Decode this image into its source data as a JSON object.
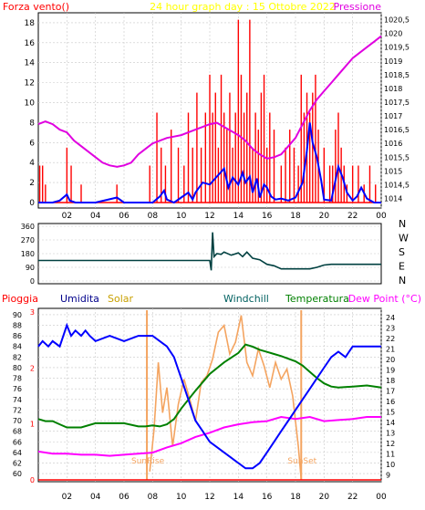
{
  "colors": {
    "panel_border": "#000000",
    "grid": "#c8c8c8",
    "wind_speed": "#ff0000",
    "wind_gust_avg": "#0000ff",
    "pressure": "#e000e0",
    "direction": "#004040",
    "humidity": "#0000ff",
    "solar": "#f4a460",
    "windchill": "#006400",
    "temperature": "#008000",
    "dew_point": "#ff00ff",
    "rain": "#ff0000",
    "sun_marker": "#f4a460"
  },
  "chart_data": [
    {
      "type": "bar",
      "title": "24 hour graph day : 15 Ottobre 2022",
      "left_label": "Forza vento()",
      "right_label": "Pressione",
      "x_ticks": [
        "02",
        "04",
        "06",
        "08",
        "10",
        "12",
        "14",
        "16",
        "18",
        "20",
        "22",
        "00"
      ],
      "y_left_ticks": [
        "0",
        "2",
        "4",
        "6",
        "8",
        "10",
        "12",
        "14",
        "16",
        "18"
      ],
      "y_left_lim": [
        0,
        19
      ],
      "y_right_ticks": [
        "1014",
        "1014,5",
        "1015",
        "1015,5",
        "1016",
        "1016,5",
        "1017",
        "1017,5",
        "1018",
        "1018,5",
        "1019",
        "1019,5",
        "1020",
        "1020,5"
      ],
      "y_right_lim": [
        1013.85,
        1020.75
      ],
      "wind_gust_hours": [
        0.1,
        0.3,
        0.5,
        2.0,
        2.3,
        3.0,
        5.5,
        7.8,
        8.3,
        8.6,
        8.9,
        9.3,
        9.8,
        10.2,
        10.5,
        10.8,
        11.1,
        11.4,
        11.7,
        12.0,
        12.2,
        12.4,
        12.6,
        12.8,
        13.0,
        13.2,
        13.4,
        13.6,
        13.8,
        14.0,
        14.2,
        14.4,
        14.6,
        14.8,
        15.0,
        15.2,
        15.4,
        15.6,
        15.8,
        16.0,
        16.2,
        16.5,
        17.0,
        17.3,
        17.6,
        17.9,
        18.2,
        18.4,
        18.6,
        18.8,
        19.0,
        19.2,
        19.4,
        19.6,
        20.0,
        20.4,
        20.6,
        20.8,
        21.0,
        21.2,
        21.4,
        21.6,
        22.0,
        22.4,
        22.8,
        23.2,
        23.6
      ],
      "wind_gust_values": [
        3.7,
        3.7,
        1.8,
        5.5,
        3.7,
        1.8,
        1.8,
        3.7,
        9.0,
        5.5,
        3.7,
        7.3,
        5.5,
        3.7,
        9.0,
        5.5,
        11.0,
        5.5,
        9.0,
        12.8,
        9.0,
        11.0,
        5.5,
        12.8,
        9.0,
        7.3,
        11.0,
        5.5,
        9.0,
        18.3,
        12.8,
        9.0,
        11.0,
        18.3,
        5.5,
        9.0,
        7.3,
        11.0,
        12.8,
        5.5,
        9.0,
        7.3,
        3.7,
        5.5,
        7.3,
        5.5,
        3.7,
        12.8,
        9.0,
        11.0,
        9.0,
        11.0,
        12.8,
        7.3,
        5.5,
        3.7,
        3.7,
        7.3,
        9.0,
        5.5,
        3.7,
        1.8,
        3.7,
        3.7,
        1.8,
        3.7,
        1.8
      ],
      "wind_avg_hours": [
        0,
        1.0,
        1.5,
        2.0,
        2.2,
        2.6,
        3.0,
        4.0,
        5.5,
        6.0,
        7.0,
        8.0,
        8.5,
        8.8,
        9.0,
        9.5,
        10.0,
        10.5,
        10.8,
        11.0,
        11.5,
        12.0,
        12.5,
        13.0,
        13.3,
        13.6,
        14.0,
        14.3,
        14.5,
        14.8,
        15.0,
        15.3,
        15.5,
        15.8,
        16.0,
        16.3,
        16.6,
        17.0,
        17.5,
        18.0,
        18.5,
        18.8,
        19.0,
        19.2,
        19.5,
        19.8,
        20.0,
        20.5,
        21.0,
        21.3,
        21.6,
        22.0,
        22.3,
        22.6,
        23.0,
        23.5,
        24.0
      ],
      "wind_avg_values": [
        0,
        0,
        0.2,
        0.8,
        0.2,
        0,
        0,
        0,
        0.5,
        0,
        0,
        0,
        0.6,
        1.2,
        0.3,
        0,
        0.5,
        1.0,
        0.3,
        1.0,
        2.0,
        1.8,
        2.6,
        3.4,
        1.5,
        2.5,
        1.8,
        3.0,
        2.0,
        2.6,
        1.0,
        2.4,
        0.5,
        1.8,
        1.5,
        0.6,
        0.3,
        0.4,
        0.2,
        0.5,
        2.0,
        5.2,
        8.0,
        6.0,
        4.5,
        2.2,
        0.3,
        0.2,
        3.6,
        2.5,
        1.0,
        0.2,
        0.6,
        1.5,
        0.4,
        0,
        0
      ],
      "pressure_hours": [
        0,
        0.5,
        1.0,
        1.5,
        2.0,
        2.5,
        3.0,
        3.5,
        4.0,
        4.5,
        5.0,
        5.5,
        6.0,
        6.5,
        7.0,
        7.5,
        8.0,
        8.5,
        9.0,
        9.5,
        10.0,
        10.5,
        11.0,
        11.5,
        12.0,
        12.5,
        13.0,
        13.5,
        14.0,
        14.5,
        15.0,
        15.5,
        16.0,
        16.5,
        17.0,
        17.5,
        18.0,
        18.5,
        19.0,
        19.5,
        20.0,
        20.5,
        21.0,
        21.5,
        22.0,
        22.5,
        23.0,
        23.5,
        24.0
      ],
      "pressure_values": [
        1016.7,
        1016.8,
        1016.7,
        1016.5,
        1016.4,
        1016.1,
        1015.9,
        1015.7,
        1015.5,
        1015.3,
        1015.2,
        1015.15,
        1015.2,
        1015.3,
        1015.6,
        1015.8,
        1016.0,
        1016.1,
        1016.2,
        1016.25,
        1016.3,
        1016.4,
        1016.5,
        1016.6,
        1016.7,
        1016.75,
        1016.6,
        1016.45,
        1016.3,
        1016.1,
        1015.8,
        1015.6,
        1015.45,
        1015.5,
        1015.6,
        1015.9,
        1016.2,
        1016.7,
        1017.2,
        1017.6,
        1017.9,
        1018.2,
        1018.5,
        1018.8,
        1019.1,
        1019.3,
        1019.5,
        1019.7,
        1019.9
      ]
    },
    {
      "type": "line",
      "right_labels": [
        "N",
        "W",
        "S",
        "E",
        "N"
      ],
      "y_left_ticks": [
        "0",
        "90",
        "180",
        "270",
        "360"
      ],
      "y_lim": [
        0,
        360
      ],
      "direction_hours": [
        0,
        1,
        2,
        3,
        4,
        5,
        6,
        7,
        8,
        9,
        10,
        11,
        11.5,
        12.0,
        12.1,
        12.2,
        12.3,
        12.5,
        12.8,
        13.0,
        13.5,
        14.0,
        14.3,
        14.6,
        15.0,
        15.5,
        16.0,
        16.5,
        17.0,
        18.0,
        18.5,
        19.0,
        19.5,
        20.0,
        20.5,
        21.0,
        22.0,
        23.0,
        24.0
      ],
      "direction_values": [
        135,
        135,
        135,
        135,
        135,
        135,
        135,
        135,
        135,
        135,
        135,
        135,
        135,
        135,
        70,
        320,
        160,
        180,
        175,
        190,
        170,
        185,
        160,
        190,
        150,
        140,
        110,
        100,
        80,
        80,
        80,
        80,
        90,
        105,
        110,
        110,
        110,
        110,
        110
      ]
    },
    {
      "type": "line",
      "series_labels": [
        "Pioggia",
        "Umidita",
        "Solar",
        "Windchill",
        "Temperatura",
        "Dew Point (°C)"
      ],
      "y_left_ticks": [
        "60",
        "62",
        "64",
        "66",
        "68",
        "70",
        "72",
        "74",
        "76",
        "78",
        "80",
        "82",
        "84",
        "86",
        "88",
        "90"
      ],
      "y_left_lim": [
        59.5,
        90.5
      ],
      "y_rain_ticks": [
        "0",
        "1",
        "2",
        "3"
      ],
      "y_right_ticks": [
        "9",
        "10",
        "11",
        "12",
        "13",
        "14",
        "15",
        "16",
        "17",
        "18",
        "19",
        "20",
        "21",
        "22",
        "23",
        "24"
      ],
      "y_right_lim": [
        8.5,
        24.5
      ],
      "annotations": [
        "SunRise",
        "SunSet"
      ],
      "sunrise_hour": 7.6,
      "sunset_hour": 18.4,
      "humidity_hours": [
        0,
        0.3,
        0.7,
        1.0,
        1.5,
        2.0,
        2.3,
        2.6,
        3.0,
        3.3,
        3.6,
        4.0,
        5.0,
        6.0,
        7.0,
        8.0,
        8.5,
        9.0,
        9.5,
        10.0,
        10.5,
        11.0,
        11.5,
        12.0,
        12.5,
        13.0,
        13.5,
        14.0,
        14.5,
        15.0,
        15.5,
        16.0,
        16.5,
        17.0,
        17.5,
        18.0,
        18.5,
        19.0,
        19.5,
        20.0,
        20.5,
        21.0,
        21.5,
        22.0,
        23.0,
        24.0
      ],
      "humidity_values": [
        84,
        85,
        84,
        85,
        84,
        88,
        86,
        87,
        86,
        87,
        86,
        85,
        86,
        85,
        86,
        86,
        85,
        84,
        82,
        78,
        74,
        70,
        68,
        66,
        65,
        64,
        63,
        62,
        61,
        61,
        62,
        64,
        66,
        68,
        70,
        72,
        74,
        76,
        78,
        80,
        82,
        83,
        82,
        84,
        84,
        84
      ],
      "temperature_hours": [
        0,
        0.5,
        1.0,
        1.5,
        2.0,
        3.0,
        4.0,
        5.0,
        6.0,
        7.0,
        7.5,
        8.0,
        8.5,
        9.0,
        9.5,
        10.0,
        11.0,
        12.0,
        13.0,
        14.0,
        14.5,
        15.0,
        15.5,
        16.0,
        16.5,
        17.0,
        18.0,
        18.5,
        19.0,
        19.5,
        20.0,
        20.5,
        21.0,
        22.0,
        23.0,
        24.0
      ],
      "temperature_values": [
        14.3,
        14.1,
        14.1,
        13.8,
        13.5,
        13.5,
        13.9,
        13.9,
        13.9,
        13.6,
        13.6,
        13.7,
        13.6,
        13.8,
        14.3,
        15.3,
        17.0,
        18.6,
        19.7,
        20.6,
        21.4,
        21.2,
        20.9,
        20.7,
        20.5,
        20.3,
        19.8,
        19.4,
        18.8,
        18.2,
        17.7,
        17.4,
        17.3,
        17.4,
        17.5,
        17.3
      ],
      "dew_point_hours": [
        0,
        1.0,
        2.0,
        3.0,
        4.0,
        5.0,
        6.0,
        7.0,
        8.0,
        9.0,
        10.0,
        11.0,
        12.0,
        13.0,
        14.0,
        15.0,
        16.0,
        17.0,
        18.0,
        19.0,
        20.0,
        21.0,
        22.0,
        23.0,
        24.0
      ],
      "dew_point_values": [
        11.2,
        11.0,
        11.0,
        10.9,
        10.9,
        10.8,
        10.9,
        11.0,
        11.1,
        11.6,
        12.0,
        12.6,
        13.0,
        13.5,
        13.8,
        14.0,
        14.1,
        14.5,
        14.3,
        14.5,
        14.1,
        14.2,
        14.3,
        14.5,
        14.5
      ],
      "solar_hours": [
        7.8,
        8.1,
        8.4,
        8.7,
        9.0,
        9.4,
        9.8,
        10.2,
        10.6,
        11.0,
        11.4,
        11.8,
        12.2,
        12.6,
        13.0,
        13.4,
        13.8,
        14.2,
        14.6,
        15.0,
        15.4,
        15.8,
        16.2,
        16.6,
        17.0,
        17.4,
        17.8,
        18.2,
        18.4
      ],
      "solar_fraction": [
        0.05,
        0.3,
        0.7,
        0.4,
        0.55,
        0.2,
        0.45,
        0.6,
        0.48,
        0.35,
        0.58,
        0.62,
        0.72,
        0.88,
        0.92,
        0.75,
        0.82,
        0.98,
        0.7,
        0.62,
        0.78,
        0.68,
        0.55,
        0.7,
        0.6,
        0.66,
        0.5,
        0.2,
        0.0
      ]
    }
  ]
}
